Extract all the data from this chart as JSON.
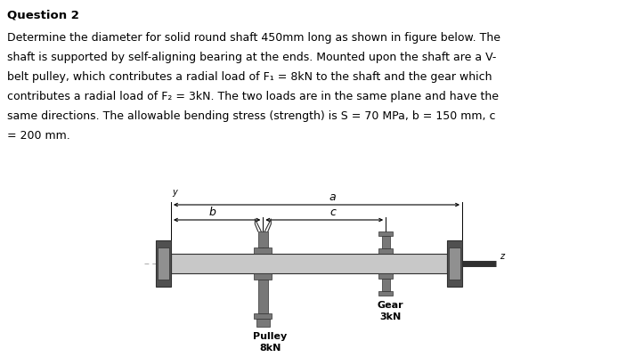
{
  "title": "Question 2",
  "lines": [
    "Determine the diameter for solid round shaft 450mm long as shown in figure below. The",
    "shaft is supported by self-aligning bearing at the ends. Mounted upon the shaft are a V-",
    "belt pulley, which contributes a radial load of F₁ = 8kN to the shaft and the gear which",
    "contributes a radial load of F₂ = 3kN. The two loads are in the same plane and have the",
    "same directions. The allowable bending stress (strength) is S = 70 MPa, b = 150 mm, c",
    "= 200 mm."
  ],
  "bg_color": "#ffffff",
  "text_color": "#000000",
  "shaft_color": "#c8c8c8",
  "bearing_color": "#505050",
  "bearing_inner_color": "#909090",
  "comp_color": "#787878",
  "dark": "#303030",
  "centerline_color": "#aaaaaa",
  "dim_color": "#000000"
}
